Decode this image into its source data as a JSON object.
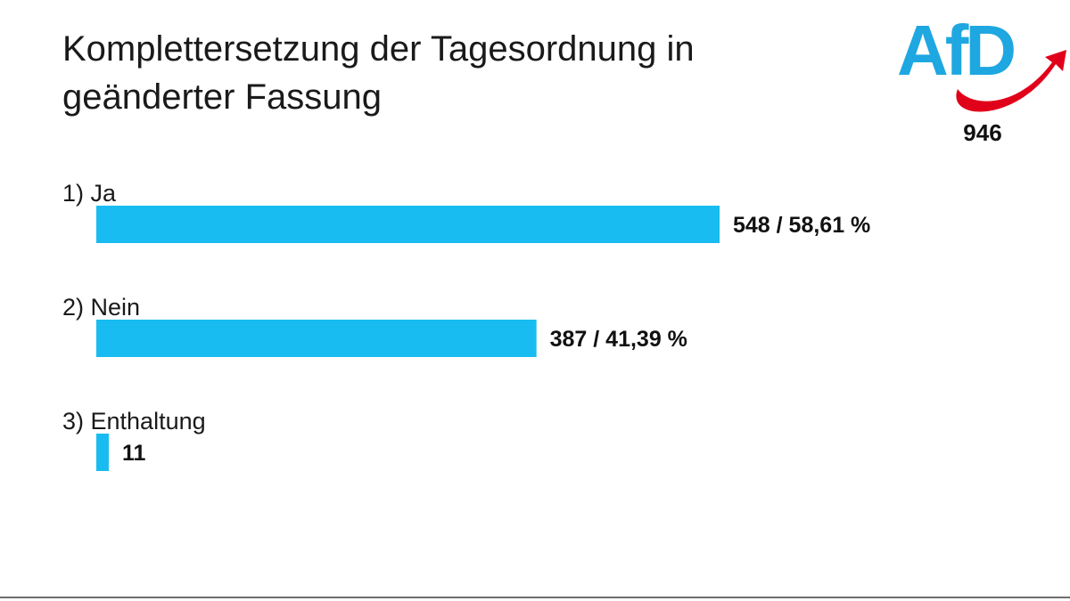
{
  "slide": {
    "title_line1": "Komplettersetzung der Tagesordnung in",
    "title_line2": "geänderter Fassung",
    "logo_text": "AfD",
    "participants": "946"
  },
  "colors": {
    "bar": "#19bcf0",
    "logo_blue": "#1ea7e1",
    "logo_red": "#e1001a"
  },
  "chart_data": {
    "type": "bar",
    "orientation": "horizontal",
    "categories": [
      "1) Ja",
      "2) Nein",
      "3) Enthaltung"
    ],
    "values": [
      548,
      387,
      11
    ],
    "value_labels": [
      "548 / 58,61 %",
      "387 / 41,39 %",
      "11"
    ],
    "title": "Komplettersetzung der Tagesordnung in geänderter Fassung",
    "xlabel": "",
    "ylabel": "",
    "xlim": [
      0,
      548
    ],
    "grid": false,
    "legend": "none"
  }
}
